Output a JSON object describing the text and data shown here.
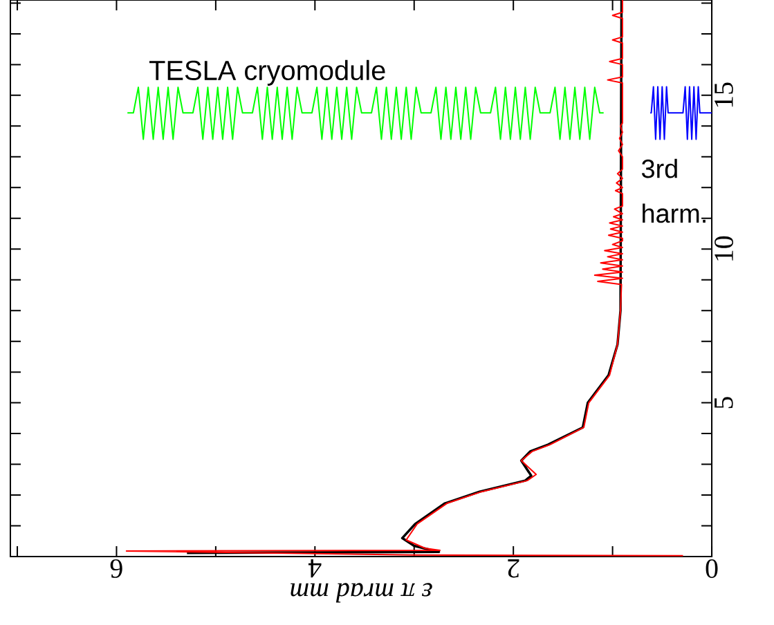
{
  "chart_data": {
    "type": "line",
    "xlabel": "ε π mrad mm",
    "annotations": [
      "TESLA cryomodule",
      "3rd harm."
    ],
    "xlim": [
      7.07,
      0
    ],
    "ylim": [
      0,
      18.1
    ],
    "xticks": [
      0,
      {
        "value": 1,
        "label": null
      },
      2,
      {
        "value": 3,
        "label": null
      },
      4,
      {
        "value": 5,
        "label": null
      },
      6,
      {
        "value": 7,
        "label": null
      }
    ],
    "yticks": [
      {
        "value": 1,
        "label": null
      },
      {
        "value": 2,
        "label": null
      },
      {
        "value": 3,
        "label": null
      },
      {
        "value": 4,
        "label": null
      },
      5,
      {
        "value": 6,
        "label": null
      },
      {
        "value": 7,
        "label": null
      },
      {
        "value": 8,
        "label": null
      },
      {
        "value": 9,
        "label": null
      },
      10,
      {
        "value": 11,
        "label": null
      },
      {
        "value": 12,
        "label": null
      },
      {
        "value": 13,
        "label": null
      },
      {
        "value": 14,
        "label": null
      },
      15,
      {
        "value": 16,
        "label": null
      },
      {
        "value": 17,
        "label": null
      },
      {
        "value": 18,
        "label": null
      }
    ],
    "series": [
      {
        "color": "#000000",
        "x": [
          5.29,
          2.75,
          3.0,
          3.12,
          2.99,
          2.69,
          2.34,
          1.88,
          1.82,
          1.92,
          1.83,
          1.65,
          1.3,
          1.25,
          1.04,
          0.95,
          0.92,
          0.91
        ],
        "values": [
          0.12,
          0.15,
          0.35,
          0.6,
          1.06,
          1.73,
          2.11,
          2.47,
          2.63,
          3.12,
          3.42,
          3.64,
          4.2,
          5.0,
          5.9,
          6.9,
          8.0,
          18.1
        ]
      },
      {
        "color": "#ff0000",
        "x": [
          0.29,
          3.0,
          5.9,
          2.74,
          2.89,
          3.08,
          2.97,
          2.67,
          2.32,
          1.86,
          1.77,
          1.83,
          1.92,
          1.81,
          1.63,
          1.29,
          1.24,
          1.03,
          0.95,
          0.92,
          0.91,
          1.15,
          0.9,
          1.18,
          0.9,
          1.1,
          0.9,
          1.12,
          0.9,
          1.05,
          0.9,
          1.08,
          0.9,
          1.0,
          0.9,
          0.9,
          1.04,
          0.9,
          1.02,
          0.9,
          1.03,
          0.9,
          0.99,
          0.9,
          0.98,
          0.9,
          0.9,
          0.97,
          0.9,
          0.96,
          0.9,
          0.95,
          0.9,
          0.9,
          0.94,
          0.9,
          0.93,
          0.9,
          0.92,
          0.9,
          0.9,
          1.05,
          0.9,
          0.9,
          1.03,
          0.9,
          0.9,
          1.0,
          0.9,
          0.9,
          1.0,
          0.9,
          0.9
        ],
        "values": [
          0.03,
          0.05,
          0.18,
          0.2,
          0.27,
          0.54,
          1.06,
          1.73,
          2.11,
          2.47,
          2.67,
          2.85,
          3.12,
          3.42,
          3.64,
          4.2,
          5.0,
          5.9,
          6.9,
          8.0,
          8.85,
          8.95,
          9.05,
          9.15,
          9.25,
          9.35,
          9.45,
          9.55,
          9.65,
          9.75,
          9.85,
          9.95,
          10.05,
          10.15,
          10.27,
          10.35,
          10.45,
          10.55,
          10.65,
          10.75,
          10.85,
          10.95,
          11.05,
          11.15,
          11.3,
          11.4,
          11.8,
          11.9,
          12.0,
          12.15,
          12.3,
          12.45,
          12.6,
          13.0,
          13.2,
          13.4,
          13.6,
          13.8,
          14.0,
          14.1,
          15.4,
          15.5,
          15.6,
          16.0,
          16.1,
          16.2,
          16.7,
          16.8,
          16.9,
          17.5,
          17.6,
          17.7,
          18.1
        ]
      },
      {
        "color": "#00ff00",
        "x": [
          5.89,
          5.83,
          5.78,
          5.73,
          5.68,
          5.63,
          5.58,
          5.53,
          5.48,
          5.43,
          5.38,
          5.33,
          5.23,
          5.18,
          5.13,
          5.08,
          5.03,
          4.98,
          4.93,
          4.88,
          4.83,
          4.78,
          4.73,
          4.63,
          4.58,
          4.53,
          4.48,
          4.43,
          4.38,
          4.33,
          4.28,
          4.23,
          4.18,
          4.13,
          4.03,
          3.98,
          3.93,
          3.88,
          3.83,
          3.78,
          3.73,
          3.68,
          3.63,
          3.58,
          3.53,
          3.43,
          3.38,
          3.33,
          3.28,
          3.23,
          3.18,
          3.13,
          3.08,
          3.03,
          2.98,
          2.93,
          2.83,
          2.78,
          2.73,
          2.68,
          2.63,
          2.58,
          2.53,
          2.48,
          2.43,
          2.38,
          2.33,
          2.23,
          2.18,
          2.13,
          2.08,
          2.03,
          1.98,
          1.93,
          1.88,
          1.83,
          1.78,
          1.73,
          1.63,
          1.58,
          1.53,
          1.48,
          1.43,
          1.38,
          1.33,
          1.28,
          1.23,
          1.18,
          1.13,
          1.09
        ],
        "values": [
          14.43,
          14.43,
          15.26,
          13.57,
          15.26,
          13.57,
          15.26,
          13.57,
          15.26,
          13.57,
          15.26,
          14.43,
          14.43,
          15.26,
          13.57,
          15.26,
          13.57,
          15.26,
          13.57,
          15.26,
          13.57,
          15.26,
          14.43,
          14.43,
          15.26,
          13.57,
          15.26,
          13.57,
          15.26,
          13.57,
          15.26,
          13.57,
          15.26,
          14.43,
          14.43,
          15.26,
          13.57,
          15.26,
          13.57,
          15.26,
          13.57,
          15.26,
          13.57,
          15.26,
          14.43,
          14.43,
          15.26,
          13.57,
          15.26,
          13.57,
          15.26,
          13.57,
          15.26,
          13.57,
          15.26,
          14.43,
          14.43,
          15.26,
          13.57,
          15.26,
          13.57,
          15.26,
          13.57,
          15.26,
          13.57,
          15.26,
          14.43,
          14.43,
          15.26,
          13.57,
          15.26,
          13.57,
          15.26,
          13.57,
          15.26,
          13.57,
          15.26,
          14.43,
          14.43,
          15.26,
          13.57,
          15.26,
          13.57,
          15.26,
          13.57,
          15.26,
          13.57,
          15.26,
          14.43,
          14.43
        ]
      },
      {
        "color": "#0000ff",
        "x": [
          0.62,
          0.61,
          0.588,
          0.566,
          0.544,
          0.522,
          0.5,
          0.478,
          0.456,
          0.44,
          0.29,
          0.268,
          0.246,
          0.224,
          0.202,
          0.18,
          0.158,
          0.136,
          0.12,
          0
        ],
        "values": [
          14.43,
          14.43,
          15.28,
          13.57,
          15.28,
          13.57,
          15.28,
          13.57,
          15.28,
          14.43,
          14.43,
          15.28,
          13.57,
          15.28,
          13.57,
          15.28,
          13.57,
          15.28,
          14.43,
          14.43
        ]
      }
    ]
  }
}
